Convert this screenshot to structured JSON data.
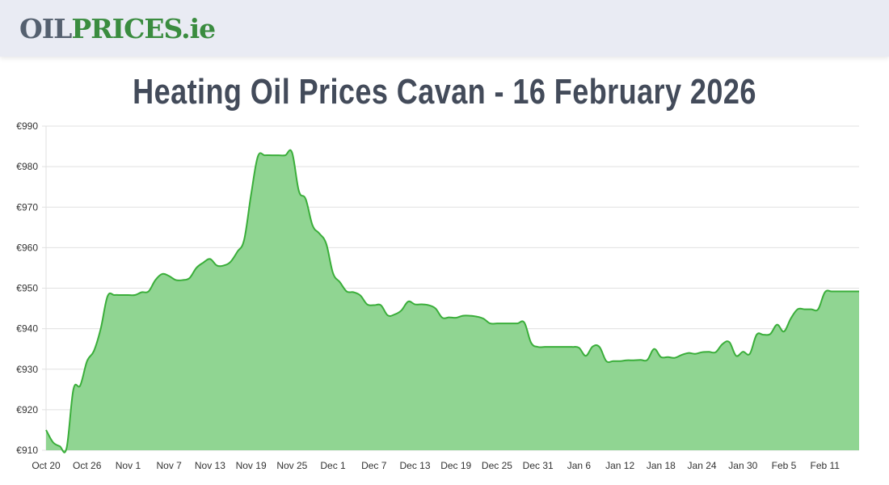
{
  "header": {
    "logo_part1": "OIL",
    "logo_part2": "PRICES.ie"
  },
  "page": {
    "title": "Heating Oil Prices Cavan - 16 February 2026"
  },
  "colors": {
    "line": "#3aae3a",
    "fill": "#90d592",
    "grid": "#e0e0e0",
    "logo_gray": "#55606f",
    "logo_green": "#3a8c3f",
    "title": "#434b5a"
  },
  "chart_data": {
    "type": "area",
    "title": "Heating Oil Prices Cavan - 16 February 2026",
    "xlabel": "",
    "ylabel": "",
    "ylim": [
      910,
      990
    ],
    "yticks": [
      "€910",
      "€920",
      "€930",
      "€940",
      "€950",
      "€960",
      "€970",
      "€980",
      "€990"
    ],
    "ytick_values": [
      910,
      920,
      930,
      940,
      950,
      960,
      970,
      980,
      990
    ],
    "xticks": [
      "Oct 20",
      "Oct 26",
      "Nov 1",
      "Nov 7",
      "Nov 13",
      "Nov 19",
      "Nov 25",
      "Dec 1",
      "Dec 7",
      "Dec 13",
      "Dec 19",
      "Dec 25",
      "Dec 31",
      "Jan 6",
      "Jan 12",
      "Jan 18",
      "Jan 24",
      "Jan 30",
      "Feb 5",
      "Feb 11"
    ],
    "xtick_day_index": [
      0,
      6,
      12,
      18,
      24,
      30,
      36,
      42,
      48,
      54,
      60,
      66,
      72,
      78,
      84,
      90,
      96,
      102,
      108,
      114
    ],
    "grid": true,
    "legend": "none",
    "x_start": "Oct 20",
    "x_end": "Feb 16",
    "series": [
      {
        "name": "Heating Oil Price (€)",
        "values": [
          915,
          912,
          911,
          910.5,
          925,
          926,
          932,
          934.5,
          940,
          948,
          948.3,
          948.3,
          948.3,
          948.3,
          949,
          949.2,
          952,
          953.5,
          953,
          952,
          952,
          952.5,
          955,
          956.3,
          957.2,
          955.6,
          955.6,
          956.5,
          959,
          962,
          973,
          982.5,
          982.8,
          982.8,
          982.8,
          982.8,
          983.5,
          974,
          972,
          965.5,
          963.5,
          961,
          953.7,
          951.5,
          949.2,
          949,
          948.2,
          946,
          945.8,
          945.8,
          943.3,
          943.5,
          944.5,
          946.7,
          946,
          946,
          945.8,
          945,
          942.7,
          942.8,
          942.7,
          943.2,
          943.2,
          943,
          942.5,
          941.3,
          941.3,
          941.3,
          941.3,
          941.3,
          941.5,
          936.5,
          935.5,
          935.5,
          935.5,
          935.5,
          935.5,
          935.5,
          935.3,
          933.3,
          935.6,
          935.5,
          932,
          932,
          932,
          932.2,
          932.2,
          932.3,
          932.3,
          935,
          933,
          933,
          932.8,
          933.5,
          934,
          933.8,
          934.2,
          934.3,
          934.2,
          936.2,
          936.7,
          933.3,
          934.3,
          933.8,
          938.5,
          938.5,
          938.7,
          941,
          939.3,
          942.5,
          944.8,
          944.8,
          944.8,
          944.8,
          949,
          949.2,
          949.2,
          949.2,
          949.2,
          949.2
        ]
      }
    ]
  }
}
